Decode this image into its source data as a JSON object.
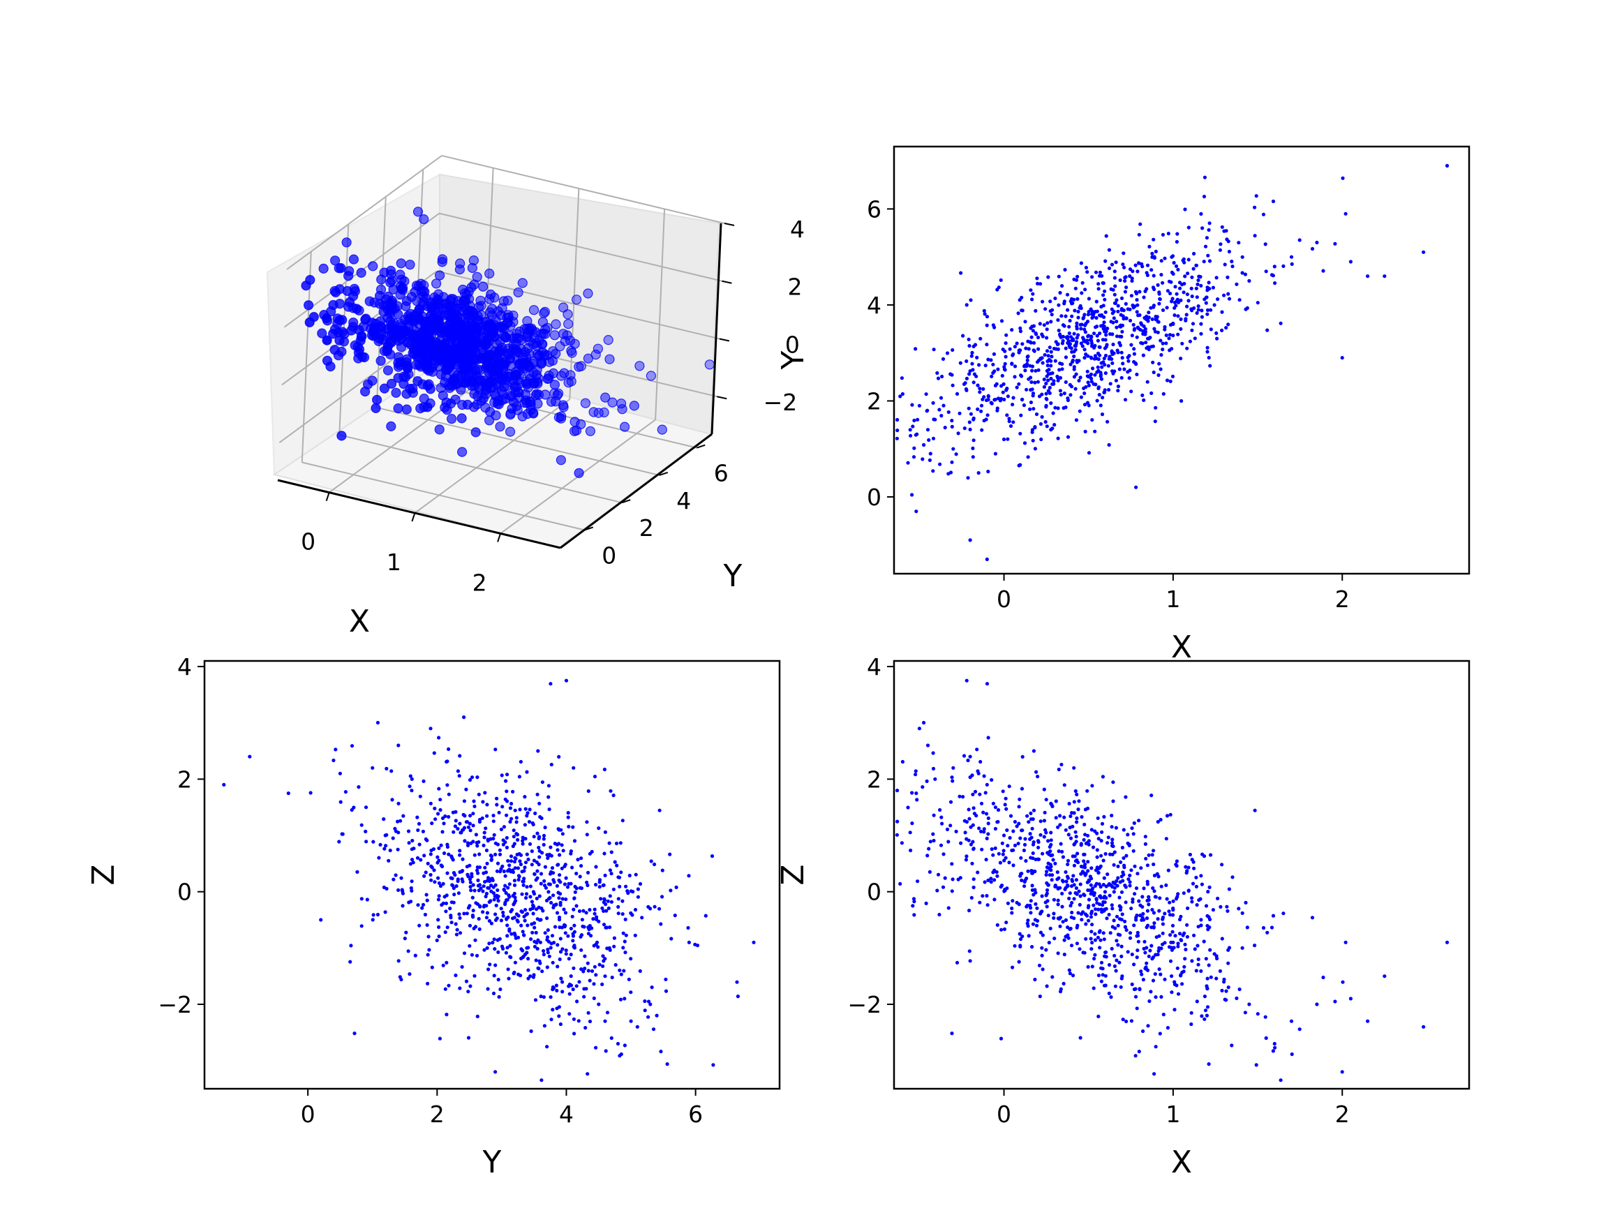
{
  "figure": {
    "background": "#ffffff",
    "point_color": "#0000ff"
  },
  "chart_data": [
    {
      "id": "scatter3d",
      "type": "scatter",
      "projection": "3d",
      "xlabel": "X",
      "ylabel": "Y",
      "zlabel": "",
      "x_ticks": [
        0,
        1,
        2
      ],
      "y_ticks": [
        0,
        2,
        4,
        6
      ],
      "z_ticks": [
        -2,
        0,
        2,
        4
      ],
      "z_tick_labels": [
        "−2",
        "0",
        "2",
        "4"
      ],
      "xlim": [
        -0.6,
        2.7
      ],
      "ylim": [
        -1.3,
        7.0
      ],
      "zlim": [
        -3.3,
        4.0
      ],
      "series_ref": "points"
    },
    {
      "id": "xy",
      "type": "scatter",
      "xlabel": "X",
      "ylabel": "Y",
      "xvar": "x",
      "yvar": "y",
      "xlim": [
        -0.65,
        2.75
      ],
      "ylim": [
        -1.6,
        7.3
      ],
      "x_ticks": [
        0,
        1,
        2
      ],
      "y_ticks": [
        0,
        2,
        4,
        6
      ],
      "y_tick_labels": [
        "0",
        "2",
        "4",
        "6"
      ],
      "series_ref": "points"
    },
    {
      "id": "yz",
      "type": "scatter",
      "xlabel": "Y",
      "ylabel": "Z",
      "xvar": "y",
      "yvar": "z",
      "xlim": [
        -1.6,
        7.3
      ],
      "ylim": [
        -3.5,
        4.1
      ],
      "x_ticks": [
        0,
        2,
        4,
        6
      ],
      "y_ticks": [
        -2,
        0,
        2,
        4
      ],
      "y_tick_labels": [
        "−2",
        "0",
        "2",
        "4"
      ],
      "series_ref": "points"
    },
    {
      "id": "xz",
      "type": "scatter",
      "xlabel": "X",
      "ylabel": "Z",
      "xvar": "x",
      "yvar": "z",
      "xlim": [
        -0.65,
        2.75
      ],
      "ylim": [
        -3.5,
        4.1
      ],
      "x_ticks": [
        0,
        1,
        2
      ],
      "y_ticks": [
        -2,
        0,
        2,
        4
      ],
      "y_tick_labels": [
        "−2",
        "0",
        "2",
        "4"
      ],
      "series_ref": "points"
    }
  ],
  "points": {
    "x": [
      2.62,
      2.02,
      2.48,
      -0.22,
      0.78,
      -0.5,
      -0.45,
      -0.2,
      -0.15,
      -0.05,
      0.0,
      0.1,
      0.25,
      0.4,
      0.55,
      0.7,
      0.85,
      1.0,
      1.15,
      1.3,
      1.45,
      1.55,
      1.7,
      1.85,
      2.05,
      2.15,
      2.25,
      2.0,
      1.6,
      1.2,
      -0.3,
      -0.1
    ],
    "y": [
      6.9,
      5.9,
      5.1,
      4.0,
      0.2,
      1.9,
      1.4,
      -0.9,
      0.5,
      0.9,
      1.2,
      1.7,
      1.9,
      2.3,
      2.6,
      2.9,
      3.3,
      3.6,
      3.9,
      4.2,
      4.5,
      4.7,
      5.0,
      5.3,
      4.9,
      4.6,
      4.6,
      2.9,
      4.8,
      5.4,
      1.0,
      -1.3
    ],
    "z": [
      -0.9,
      -0.9,
      -2.4,
      3.75,
      -0.5,
      2.9,
      2.6,
      2.4,
      2.1,
      1.5,
      1.0,
      0.6,
      0.3,
      0.1,
      -0.2,
      -0.4,
      -0.6,
      -0.9,
      -1.2,
      -1.6,
      -2.0,
      -2.6,
      -2.3,
      -2.0,
      -1.9,
      -2.3,
      -1.5,
      -3.2,
      -2.7,
      -2.2,
      2.2,
      1.9
    ]
  }
}
